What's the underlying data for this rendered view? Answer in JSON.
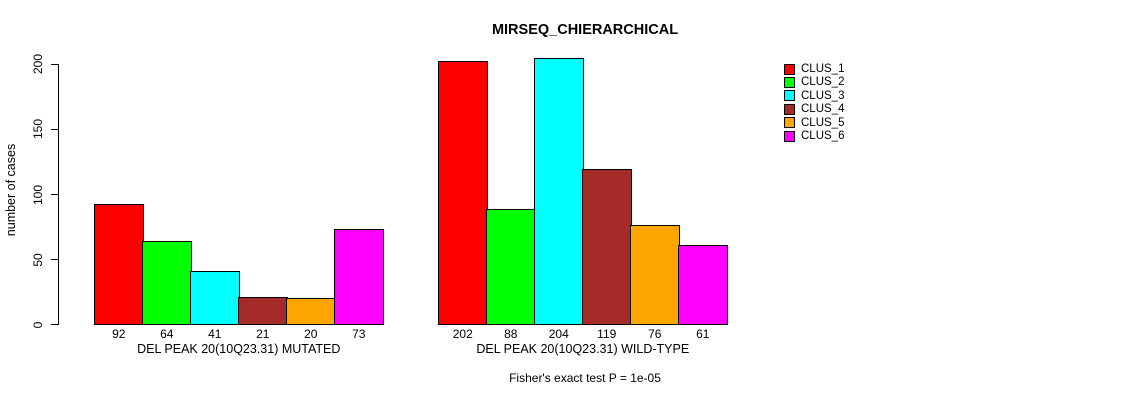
{
  "chart_data": {
    "type": "bar",
    "title": "MIRSEQ_CHIERARCHICAL",
    "ylabel": "number of cases",
    "ylim": [
      0,
      205
    ],
    "yticks": [
      "0",
      "50",
      "100",
      "150",
      "200"
    ],
    "ytick_values": [
      0,
      50,
      100,
      150,
      200
    ],
    "grid": false,
    "bar_value_labels": true,
    "series_colors": [
      "#FF0000",
      "#00FF00",
      "#00FFFF",
      "#A52A2A",
      "#FFA500",
      "#FF00FF"
    ],
    "legend": {
      "position": "right",
      "entries": [
        {
          "label": "CLUS_1",
          "color": "#FF0000"
        },
        {
          "label": "CLUS_2",
          "color": "#00FF00"
        },
        {
          "label": "CLUS_3",
          "color": "#00FFFF"
        },
        {
          "label": "CLUS_4",
          "color": "#A52A2A"
        },
        {
          "label": "CLUS_5",
          "color": "#FFA500"
        },
        {
          "label": "CLUS_6",
          "color": "#FF00FF"
        }
      ]
    },
    "groups": [
      {
        "label": "DEL PEAK 20(10Q23.31) MUTATED",
        "values": [
          92,
          64,
          41,
          21,
          20,
          73
        ]
      },
      {
        "label": "DEL PEAK 20(10Q23.31) WILD-TYPE",
        "values": [
          202,
          88,
          204,
          119,
          76,
          61
        ]
      }
    ],
    "annotation": "Fisher's exact test P = 1e-05"
  }
}
